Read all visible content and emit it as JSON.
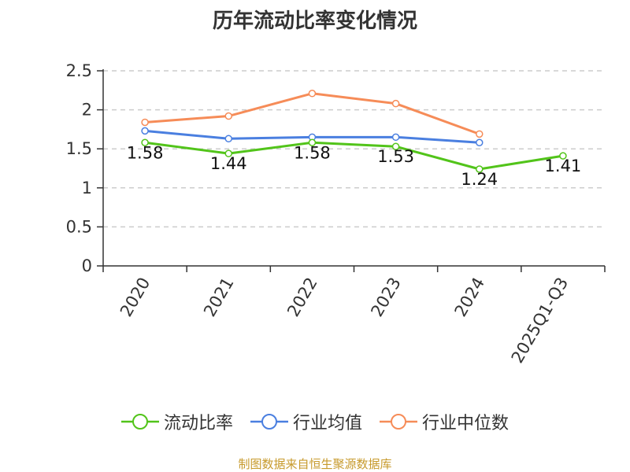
{
  "chart_data": {
    "type": "line",
    "title": "历年流动比率变化情况",
    "categories": [
      "2020",
      "2021",
      "2022",
      "2023",
      "2024",
      "2025Q1-Q3"
    ],
    "ylim": [
      0,
      2.5
    ],
    "yticks": [
      0,
      0.5,
      1,
      1.5,
      2,
      2.5
    ],
    "ytick_labels": [
      "0",
      "0.5",
      "1",
      "1.5",
      "2",
      "2.5"
    ],
    "series": [
      {
        "name": "流动比率",
        "color": "#52c41a",
        "values": [
          1.58,
          1.44,
          1.58,
          1.53,
          1.24,
          1.41
        ],
        "labels": [
          "1.58",
          "1.44",
          "1.58",
          "1.53",
          "1.24",
          "1.41"
        ]
      },
      {
        "name": "行业均值",
        "color": "#4a7fe0",
        "values": [
          1.73,
          1.63,
          1.65,
          1.65,
          1.58,
          null
        ]
      },
      {
        "name": "行业中位数",
        "color": "#f68c58",
        "values": [
          1.84,
          1.92,
          2.21,
          2.08,
          1.69,
          null
        ]
      }
    ],
    "legend_position": "bottom",
    "grid": true
  },
  "source": {
    "text": "制图数据来自恒生聚源数据库",
    "color": "#c79a2c"
  }
}
